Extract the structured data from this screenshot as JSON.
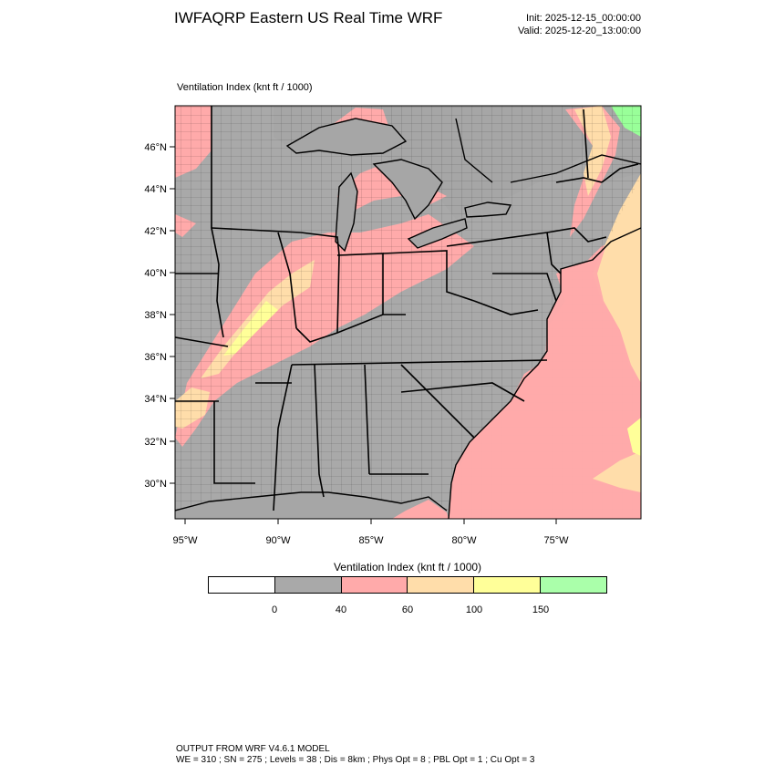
{
  "header": {
    "title": "IWFAQRP Eastern US Real Time WRF",
    "init": "Init: 2025-12-15_00:00:00",
    "valid": "Valid: 2025-12-20_13:00:00"
  },
  "map": {
    "subtitle": "Ventilation Index   (knt ft / 1000)",
    "lat_labels": [
      "46°N",
      "44°N",
      "42°N",
      "40°N",
      "38°N",
      "36°N",
      "34°N",
      "32°N",
      "30°N"
    ],
    "lon_labels": [
      "95°W",
      "90°W",
      "85°W",
      "80°W",
      "75°W"
    ],
    "colors": {
      "land": "#a9a9a9",
      "water_gray": "#a6a6a6",
      "pink": "#ffaaaa",
      "orange": "#ffddaa",
      "yellow": "#ffff99",
      "green": "#99ff99",
      "boundary": "#000000"
    }
  },
  "colorbar": {
    "title": "Ventilation Index  (knt ft / 1000)",
    "colors": [
      "#ffffff",
      "#a9a9a9",
      "#ffaaaa",
      "#ffddaa",
      "#ffff99",
      "#aaffaa"
    ],
    "labels": [
      "0",
      "40",
      "60",
      "100",
      "150"
    ]
  },
  "footer": {
    "line1": "OUTPUT FROM WRF V4.6.1 MODEL",
    "line2": "WE = 310 ; SN = 275 ; Levels = 38 ; Dis = 8km ; Phys Opt = 8 ; PBL Opt = 1 ; Cu Opt = 3"
  }
}
